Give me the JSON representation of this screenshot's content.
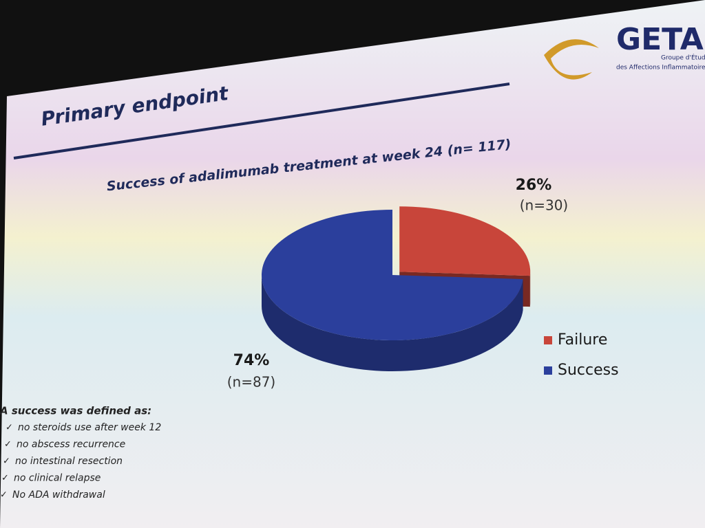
{
  "header": {
    "logo": "GETA",
    "logo_subtitle": [
      "Groupe d'Étude",
      "des Affections Inflammatoires"
    ],
    "title": "Primary endpoint"
  },
  "chart_data": {
    "type": "pie",
    "title": "Success of adalimumab treatment at week 24 (n= 117)",
    "categories": [
      "Failure",
      "Success"
    ],
    "values": [
      26,
      74
    ],
    "value_labels": [
      "26%",
      "74%"
    ],
    "annotations": [
      "(n=30)",
      "(n=87)"
    ],
    "colors": [
      "#c8453a",
      "#2b3f9c"
    ],
    "legend": "right"
  },
  "footnote": {
    "heading": "A success was defined as:",
    "items": [
      "no steroids use after week 12",
      "no abscess recurrence",
      "no intestinal resection",
      "no clinical relapse",
      "No ADA withdrawal"
    ]
  }
}
